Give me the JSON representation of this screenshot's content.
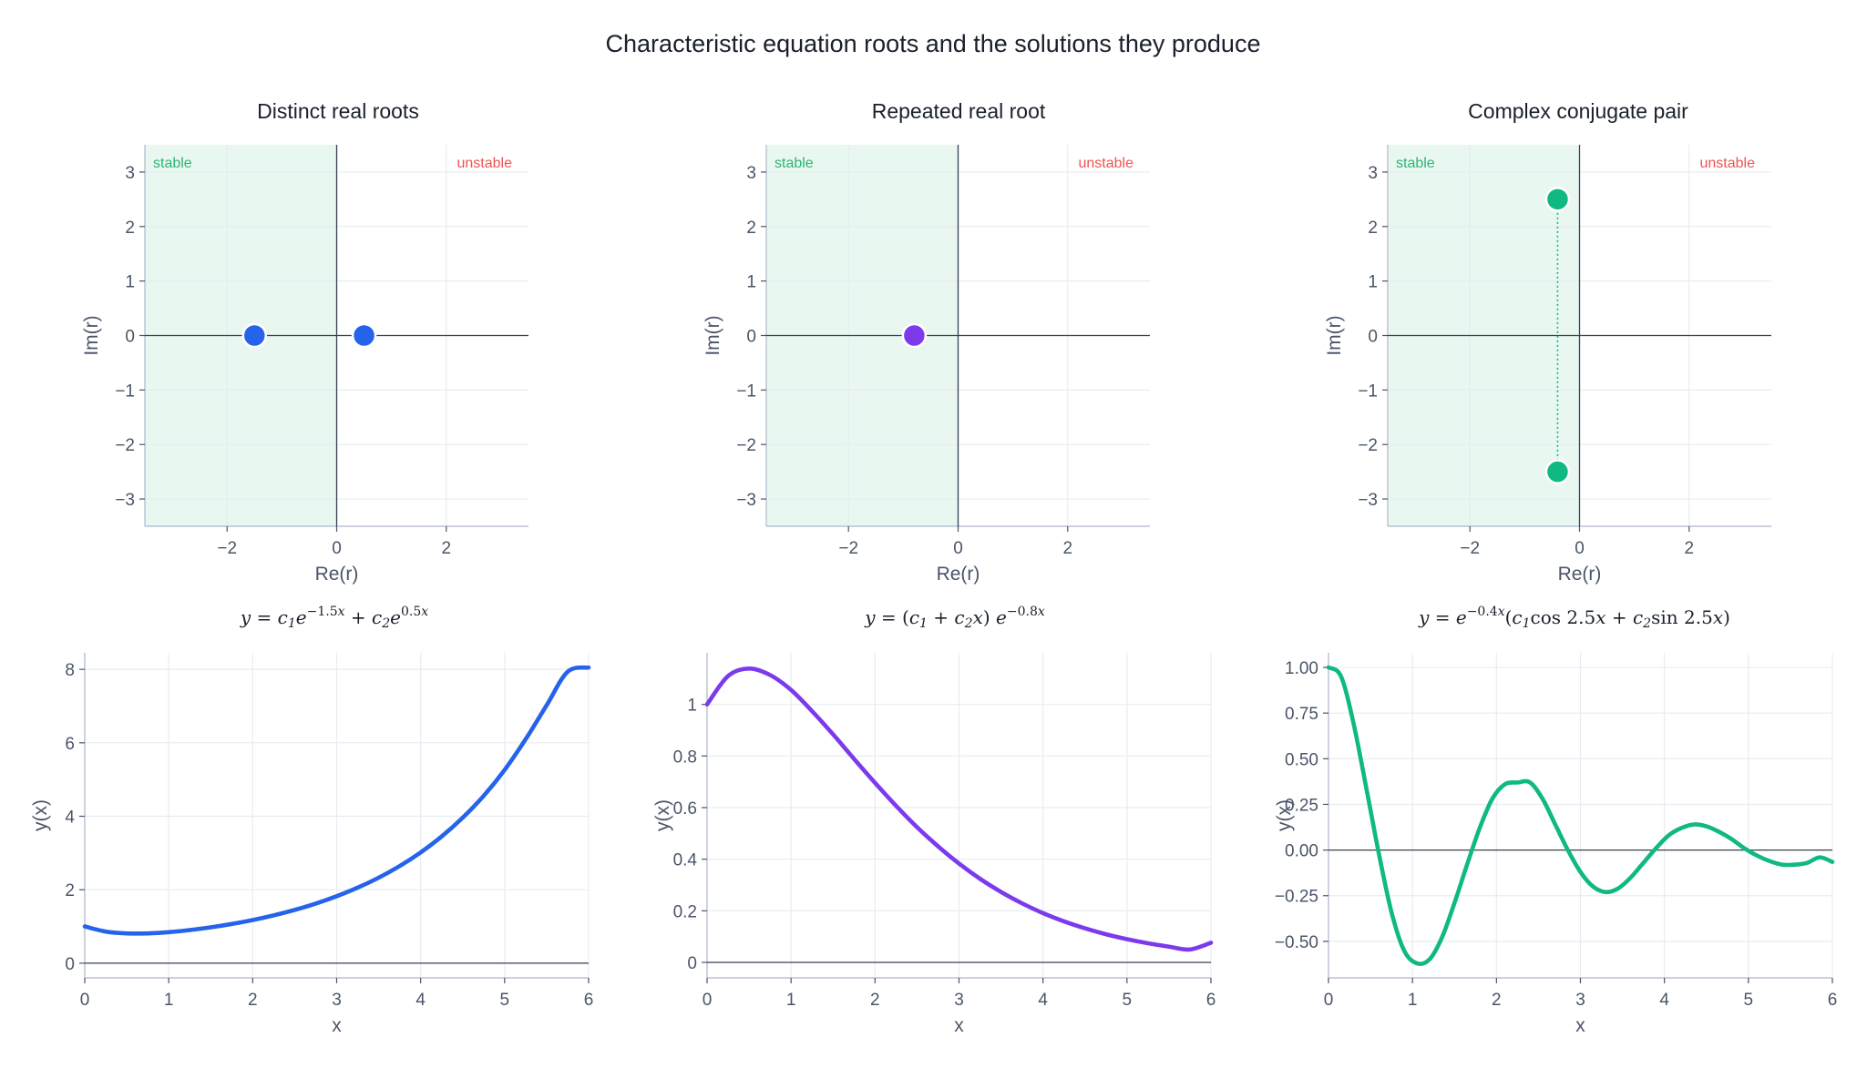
{
  "figure": {
    "title": "Characteristic equation roots and the solutions they produce",
    "colors": {
      "stable_fill": "#e9f7f1",
      "stable_text": "#2bb673",
      "unstable_text": "#ef5350",
      "grid": "#e8ecf2",
      "axis": "#3a4150"
    }
  },
  "chart_data": [
    {
      "type": "scatter",
      "title": "Distinct real roots",
      "xlabel": "Re(r)",
      "ylabel": "Im(r)",
      "xlim": [
        -3.5,
        3.5
      ],
      "ylim": [
        -3.5,
        3.5
      ],
      "xticks": [
        -2,
        0,
        2
      ],
      "yticks": [
        -3,
        -2,
        -1,
        0,
        1,
        2,
        3
      ],
      "region_labels": {
        "left": "stable",
        "right": "unstable"
      },
      "color": "#2563eb",
      "points": [
        {
          "x": -1.5,
          "y": 0
        },
        {
          "x": 0.5,
          "y": 0
        }
      ]
    },
    {
      "type": "scatter",
      "title": "Repeated real root",
      "xlabel": "Re(r)",
      "ylabel": "Im(r)",
      "xlim": [
        -3.5,
        3.5
      ],
      "ylim": [
        -3.5,
        3.5
      ],
      "xticks": [
        -2,
        0,
        2
      ],
      "yticks": [
        -3,
        -2,
        -1,
        0,
        1,
        2,
        3
      ],
      "region_labels": {
        "left": "stable",
        "right": "unstable"
      },
      "color": "#7c3aed",
      "points": [
        {
          "x": -0.8,
          "y": 0
        }
      ]
    },
    {
      "type": "scatter",
      "title": "Complex conjugate pair",
      "xlabel": "Re(r)",
      "ylabel": "Im(r)",
      "xlim": [
        -3.5,
        3.5
      ],
      "ylim": [
        -3.5,
        3.5
      ],
      "xticks": [
        -2,
        0,
        2
      ],
      "yticks": [
        -3,
        -2,
        -1,
        0,
        1,
        2,
        3
      ],
      "region_labels": {
        "left": "stable",
        "right": "unstable"
      },
      "color": "#10b981",
      "points": [
        {
          "x": -0.4,
          "y": 2.5
        },
        {
          "x": -0.4,
          "y": -2.5
        }
      ],
      "connector": true
    },
    {
      "type": "line",
      "title": "y = c1 e^(−1.5x) + c2 e^(0.5x)",
      "xlabel": "x",
      "ylabel": "y(x)",
      "xlim": [
        0,
        6
      ],
      "ylim": [
        -0.4,
        8.45
      ],
      "xticks": [
        0,
        1,
        2,
        3,
        4,
        5,
        6
      ],
      "yticks": [
        0,
        2,
        4,
        6,
        8
      ],
      "color": "#2563eb",
      "x": [
        0,
        0.25,
        0.5,
        0.75,
        1,
        1.25,
        1.5,
        1.75,
        2,
        2.25,
        2.5,
        2.75,
        3,
        3.25,
        3.5,
        3.75,
        4,
        4.25,
        4.5,
        4.75,
        5,
        5.25,
        5.5,
        5.75,
        6
      ],
      "y": [
        1.0,
        0.86,
        0.811,
        0.811,
        0.844,
        0.901,
        0.975,
        1.067,
        1.175,
        1.302,
        1.45,
        1.622,
        1.824,
        2.057,
        2.327,
        2.644,
        3.016,
        3.45,
        3.96,
        4.555,
        5.262,
        6.097,
        7.022,
        7.934,
        8.05
      ]
    },
    {
      "type": "line",
      "title": "y = (c1 + c2 x) e^(−0.8x)",
      "xlabel": "x",
      "ylabel": "y(x)",
      "xlim": [
        0,
        6
      ],
      "ylim": [
        -0.06,
        1.2
      ],
      "xticks": [
        0,
        1,
        2,
        3,
        4,
        5,
        6
      ],
      "yticks": [
        0.0,
        0.2,
        0.4,
        0.6,
        0.8,
        1.0
      ],
      "color": "#7c3aed",
      "x": [
        0,
        0.25,
        0.5,
        0.75,
        1,
        1.25,
        1.5,
        1.75,
        2,
        2.25,
        2.5,
        2.75,
        3,
        3.25,
        3.5,
        3.75,
        4,
        4.25,
        4.5,
        4.75,
        5,
        5.25,
        5.5,
        5.75,
        6
      ],
      "y": [
        1.0,
        1.11,
        1.139,
        1.114,
        1.056,
        0.974,
        0.884,
        0.789,
        0.696,
        0.607,
        0.524,
        0.45,
        0.383,
        0.324,
        0.273,
        0.229,
        0.191,
        0.159,
        0.132,
        0.109,
        0.09,
        0.074,
        0.061,
        0.05,
        0.076
      ]
    },
    {
      "type": "line",
      "title": "y = e^(−0.4x) (c1 cos 2.5x + c2 sin 2.5x)",
      "xlabel": "x",
      "ylabel": "y(x)",
      "xlim": [
        0,
        6
      ],
      "ylim": [
        -0.7,
        1.08
      ],
      "xticks": [
        0,
        1,
        2,
        3,
        4,
        5,
        6
      ],
      "yticks": [
        -0.5,
        -0.25,
        0.0,
        0.25,
        0.5,
        0.75,
        1.0
      ],
      "ytick_labels": [
        "−0.50",
        "−0.25",
        "0.00",
        "0.25",
        "0.50",
        "0.75",
        "1.00"
      ],
      "color": "#10b981",
      "x": [
        0,
        0.15,
        0.3,
        0.45,
        0.6,
        0.75,
        0.9,
        1.05,
        1.2,
        1.35,
        1.5,
        1.65,
        1.8,
        1.95,
        2.1,
        2.25,
        2.4,
        2.55,
        2.7,
        2.85,
        3.0,
        3.15,
        3.3,
        3.45,
        3.6,
        3.75,
        3.9,
        4.05,
        4.2,
        4.35,
        4.5,
        4.65,
        4.8,
        4.95,
        5.1,
        5.25,
        5.4,
        5.55,
        5.7,
        5.85,
        6.0
      ],
      "y": [
        1.0,
        0.95,
        0.69,
        0.34,
        -0.02,
        -0.34,
        -0.55,
        -0.62,
        -0.6,
        -0.48,
        -0.29,
        -0.08,
        0.12,
        0.28,
        0.36,
        0.37,
        0.37,
        0.28,
        0.14,
        0.0,
        -0.12,
        -0.2,
        -0.23,
        -0.21,
        -0.15,
        -0.07,
        0.01,
        0.08,
        0.12,
        0.14,
        0.13,
        0.1,
        0.06,
        0.01,
        -0.03,
        -0.06,
        -0.08,
        -0.08,
        -0.07,
        -0.04,
        -0.065
      ]
    }
  ]
}
